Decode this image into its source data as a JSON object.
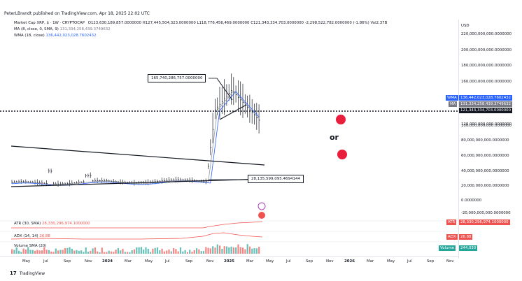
{
  "header": {
    "text": "PeterLBrandt published on TradingView.com, Apr 18, 2025 22:02 UTC"
  },
  "legend": {
    "symbol": "Market Cap XRP, $ · 1W · CRYPTOCAP",
    "ohlc": "O123,630,189,857.0000000  H127,445,504,323.0000000  L118,776,456,469.0000000  C121,343,334,703.0000000  -2,298,522,782.0000000 (-1.86%)  Vol2.37B",
    "ma_label": "MA (8, close, 0, SMA, 9)",
    "ma_value": "131,334,258,439.3749632",
    "wma_label": "WMA (18, close)",
    "wma_value": "136,442,023,028.7602432"
  },
  "y_axis": {
    "currency": "USD",
    "labels": [
      "220,000,000,000.0000000",
      "200,000,000,000.0000000",
      "180,000,000,000.0000000",
      "160,000,000,000.0000000",
      "120,000,000,000.0000000",
      "100,000,000,000.0000000",
      "80,000,000,000.0000000",
      "60,000,000,000.0000000",
      "40,000,000,000.0000000",
      "20,000,000,000.0000000",
      "0.0000000",
      "-20,000,000,000.0000000"
    ]
  },
  "badges": {
    "wma": {
      "tag": "WMA",
      "value": "136,442,023,028.7602432"
    },
    "ma": {
      "tag": "MA",
      "value": "131,334,258,439.3749632"
    },
    "price": {
      "value": "121,343,334,703.0000000"
    },
    "atr": {
      "tag": "ATR",
      "value": "28,330,296,974.1000000"
    },
    "adx": {
      "tag": "ADX",
      "value": "26.88"
    },
    "volume": {
      "tag": "Volume",
      "value": "244,030"
    }
  },
  "indicators": {
    "atr_label": "ATR (30, SMA)",
    "atr_value": "28,330,296,974.1000000",
    "adx_label": "ADX (14, 14)",
    "adx_value": "26.88",
    "vol_label": "Volume SMA (20)"
  },
  "callouts": {
    "upper": "165,740,286,757.0000000",
    "lower": "28,135,599,095.4694144"
  },
  "annotation": {
    "or": "or"
  },
  "x_axis": {
    "labels": [
      "May",
      "Jul",
      "Sep",
      "Nov",
      "2024",
      "Mar",
      "May",
      "Jul",
      "Sep",
      "Nov",
      "2025",
      "Mar",
      "May",
      "Jul",
      "Sep",
      "Nov",
      "2026",
      "Mar",
      "May",
      "Jul",
      "Sep",
      "Nov"
    ]
  },
  "footer": {
    "logo": "TradingView"
  },
  "colors": {
    "up": "#26a69a",
    "down": "#ef5350",
    "wma": "#2962ff",
    "ma": "#787b86",
    "atr": "#ef5350",
    "dot": "#e91e3c"
  }
}
